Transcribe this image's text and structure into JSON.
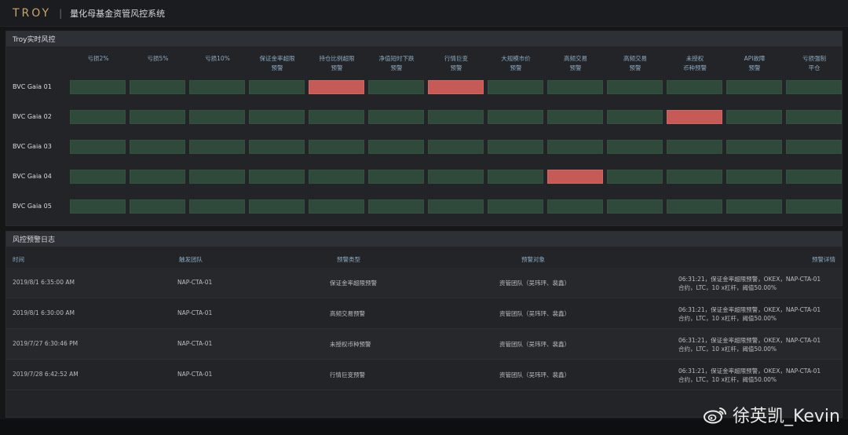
{
  "header": {
    "logo": "TROY",
    "separator": "|",
    "title": "量化母基金资管风控系统"
  },
  "risk_panel": {
    "title": "Troy实时风控",
    "columns": [
      "亏损2%",
      "亏损5%",
      "亏损10%",
      "保证金率超限\n预警",
      "持仓比例超限\n预警",
      "净值短时下跌\n预警",
      "行情巨变\n预警",
      "大规模市价\n预警",
      "高频交易\n预警",
      "高频交易\n预警",
      "未授权\n币种预警",
      "API故障\n预警",
      "亏损强制\n平仓"
    ],
    "rows": [
      {
        "label": "BVC Gaia 01",
        "alerts": [
          0,
          0,
          0,
          0,
          1,
          0,
          1,
          0,
          0,
          0,
          0,
          0,
          0
        ]
      },
      {
        "label": "BVC Gaia 02",
        "alerts": [
          0,
          0,
          0,
          0,
          0,
          0,
          0,
          0,
          0,
          0,
          1,
          0,
          0
        ]
      },
      {
        "label": "BVC Gaia 03",
        "alerts": [
          0,
          0,
          0,
          0,
          0,
          0,
          0,
          0,
          0,
          0,
          0,
          0,
          0
        ]
      },
      {
        "label": "BVC Gaia 04",
        "alerts": [
          0,
          0,
          0,
          0,
          0,
          0,
          0,
          0,
          1,
          0,
          0,
          0,
          0
        ]
      },
      {
        "label": "BVC Gaia 05",
        "alerts": [
          0,
          0,
          0,
          0,
          0,
          0,
          0,
          0,
          0,
          0,
          0,
          0,
          0
        ]
      }
    ],
    "colors": {
      "normal": "#2f4a3b",
      "alert": "#c65a57"
    }
  },
  "log_panel": {
    "title": "风控预警日志",
    "headers": {
      "time": "时间",
      "team": "触发团队",
      "type": "预警类型",
      "target": "预警对象",
      "detail": "预警详情"
    },
    "rows": [
      {
        "time": "2019/8/1  6:35:00 AM",
        "team": "NAP-CTA-01",
        "type": "保证金率超限预警",
        "target": "资管团队（吴玮玶、裴鑫）",
        "detail_l1": "06:31:21，保证金率超限预警，OKEX，NAP-CTA-01",
        "detail_l2": "合约，LTC，10 x杠杆，阈值50.00%"
      },
      {
        "time": "2019/8/1  6:30:00 AM",
        "team": "NAP-CTA-01",
        "type": "高频交易预警",
        "target": "资管团队（吴玮玶、裴鑫）",
        "detail_l1": "06:31:21，保证金率超限预警，OKEX，NAP-CTA-01",
        "detail_l2": "合约，LTC，10 x杠杆，阈值50.00%"
      },
      {
        "time": "2019/7/27  6:30:46 PM",
        "team": "NAP-CTA-01",
        "type": "未授权币种预警",
        "target": "资管团队（吴玮玶、裴鑫）",
        "detail_l1": "06:31:21，保证金率超限预警，OKEX，NAP-CTA-01",
        "detail_l2": "合约，LTC，10 x杠杆，阈值50.00%"
      },
      {
        "time": "2019/7/28  6:42:52 AM",
        "team": "NAP-CTA-01",
        "type": "行情巨变预警",
        "target": "资管团队（吴玮玶、裴鑫）",
        "detail_l1": "06:31:21，保证金率超限预警，OKEX，NAP-CTA-01",
        "detail_l2": "合约，LTC，10 x杠杆，阈值50.00%"
      }
    ]
  },
  "watermark": {
    "icon": "weibo-icon",
    "text": "徐英凯_Kevin"
  }
}
